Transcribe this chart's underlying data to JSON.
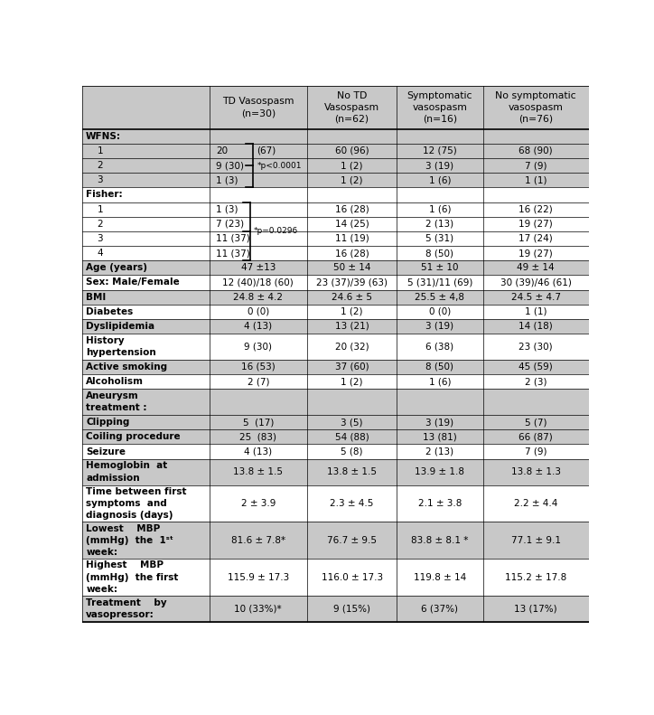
{
  "col_headers": [
    "TD Vasospasm\n(n=30)",
    "No TD\nVasospasm\n(n=62)",
    "Symptomatic\nvasospasm\n(n=16)",
    "No symptomatic\nvasospasm\n(n=76)"
  ],
  "gray_bg": "#C8C8C8",
  "white_bg": "#FFFFFF",
  "rows": [
    {
      "label": "WFNS:",
      "indent": 0,
      "bold": true,
      "type": "section",
      "cells": [
        "",
        "",
        "",
        ""
      ],
      "bg": "gray"
    },
    {
      "label": "    1",
      "indent": 0,
      "bold": false,
      "type": "normal",
      "cells": [
        "20",
        "60 (96)",
        "12 (75)",
        "68 (90)"
      ],
      "bg": "gray"
    },
    {
      "label": "    2",
      "indent": 0,
      "bold": false,
      "type": "normal",
      "cells": [
        "9 (30)",
        "1 (2)",
        "3 (19)",
        "7 (9)"
      ],
      "bg": "gray"
    },
    {
      "label": "    3",
      "indent": 0,
      "bold": false,
      "type": "normal",
      "cells": [
        "1 (3)",
        "1 (2)",
        "1 (6)",
        "1 (1)"
      ],
      "bg": "gray"
    },
    {
      "label": "Fisher:",
      "indent": 0,
      "bold": true,
      "type": "section",
      "cells": [
        "",
        "",
        "",
        ""
      ],
      "bg": "white"
    },
    {
      "label": "    1",
      "indent": 0,
      "bold": false,
      "type": "normal",
      "cells": [
        "1 (3)",
        "16 (28)",
        "1 (6)",
        "16 (22)"
      ],
      "bg": "white"
    },
    {
      "label": "    2",
      "indent": 0,
      "bold": false,
      "type": "normal",
      "cells": [
        "7 (23)",
        "14 (25)",
        "2 (13)",
        "19 (27)"
      ],
      "bg": "white"
    },
    {
      "label": "    3",
      "indent": 0,
      "bold": false,
      "type": "normal",
      "cells": [
        "11 (37)",
        "11 (19)",
        "5 (31)",
        "17 (24)"
      ],
      "bg": "white"
    },
    {
      "label": "    4",
      "indent": 0,
      "bold": false,
      "type": "normal",
      "cells": [
        "11 (37)",
        "16 (28)",
        "8 (50)",
        "19 (27)"
      ],
      "bg": "white"
    },
    {
      "label": "Age (years)",
      "indent": 0,
      "bold": true,
      "type": "normal",
      "cells": [
        "47 ±13",
        "50 ± 14",
        "51 ± 10",
        "49 ± 14"
      ],
      "bg": "gray"
    },
    {
      "label": "Sex: Male/Female",
      "indent": 0,
      "bold": true,
      "type": "normal",
      "cells": [
        "12 (40)/18 (60)",
        "23 (37)/39 (63)",
        "5 (31)/11 (69)",
        "30 (39)/46 (61)"
      ],
      "bg": "white"
    },
    {
      "label": "BMI",
      "indent": 0,
      "bold": true,
      "type": "normal",
      "cells": [
        "24.8 ± 4.2",
        "24.6 ± 5",
        "25.5 ± 4,8",
        "24.5 ± 4.7"
      ],
      "bg": "gray"
    },
    {
      "label": "Diabetes",
      "indent": 0,
      "bold": true,
      "type": "normal",
      "cells": [
        "0 (0)",
        "1 (2)",
        "0 (0)",
        "1 (1)"
      ],
      "bg": "white"
    },
    {
      "label": "Dyslipidemia",
      "indent": 0,
      "bold": true,
      "type": "normal",
      "cells": [
        "4 (13)",
        "13 (21)",
        "3 (19)",
        "14 (18)"
      ],
      "bg": "gray"
    },
    {
      "label": "History\nhypertension",
      "indent": 0,
      "bold": true,
      "type": "tall2",
      "cells": [
        "9 (30)",
        "20 (32)",
        "6 (38)",
        "23 (30)"
      ],
      "bg": "white"
    },
    {
      "label": "Active smoking",
      "indent": 0,
      "bold": true,
      "type": "normal",
      "cells": [
        "16 (53)",
        "37 (60)",
        "8 (50)",
        "45 (59)"
      ],
      "bg": "gray"
    },
    {
      "label": "Alcoholism",
      "indent": 0,
      "bold": true,
      "type": "normal",
      "cells": [
        "2 (7)",
        "1 (2)",
        "1 (6)",
        "2 (3)"
      ],
      "bg": "white"
    },
    {
      "label": "Aneurysm\ntreatment :",
      "indent": 0,
      "bold": true,
      "type": "tall2",
      "cells": [
        "",
        "",
        "",
        ""
      ],
      "bg": "gray"
    },
    {
      "label": "Clipping",
      "indent": 0,
      "bold": true,
      "type": "normal",
      "cells": [
        "5  (17)",
        "3 (5)",
        "3 (19)",
        "5 (7)"
      ],
      "bg": "gray"
    },
    {
      "label": "Coiling procedure",
      "indent": 0,
      "bold": true,
      "type": "normal",
      "cells": [
        "25  (83)",
        "54 (88)",
        "13 (81)",
        "66 (87)"
      ],
      "bg": "gray"
    },
    {
      "label": "Seizure",
      "indent": 0,
      "bold": true,
      "type": "normal",
      "cells": [
        "4 (13)",
        "5 (8)",
        "2 (13)",
        "7 (9)"
      ],
      "bg": "white"
    },
    {
      "label": "Hemoglobin  at\nadmission",
      "indent": 0,
      "bold": true,
      "type": "tall2",
      "cells": [
        "13.8 ± 1.5",
        "13.8 ± 1.5",
        "13.9 ± 1.8",
        "13.8 ± 1.3"
      ],
      "bg": "gray"
    },
    {
      "label": "Time between first\nsymptoms  and\ndiagnosis (days)",
      "indent": 0,
      "bold": true,
      "type": "tall3",
      "cells": [
        "2 ± 3.9",
        "2.3 ± 4.5",
        "2.1 ± 3.8",
        "2.2 ± 4.4"
      ],
      "bg": "white"
    },
    {
      "label": "Lowest    MBP\n(mmHg)  the  1ˢᵗ\nweek:",
      "indent": 0,
      "bold": true,
      "type": "tall3",
      "cells": [
        "81.6 ± 7.8*",
        "76.7 ± 9.5",
        "83.8 ± 8.1 *",
        "77.1 ± 9.1"
      ],
      "bg": "gray"
    },
    {
      "label": "Highest    MBP\n(mmHg)  the first\nweek:",
      "indent": 0,
      "bold": true,
      "type": "tall3",
      "cells": [
        "115.9 ± 17.3",
        "116.0 ± 17.3",
        "119.8 ± 14",
        "115.2 ± 17.8"
      ],
      "bg": "white"
    },
    {
      "label": "Treatment    by\nvasopressor:",
      "indent": 0,
      "bold": true,
      "type": "tall2",
      "cells": [
        "10 (33%)*",
        "9 (15%)",
        "6 (37%)",
        "13 (17%)"
      ],
      "bg": "gray"
    }
  ],
  "wfns_brace_rows": [
    1,
    2,
    3
  ],
  "fisher_brace_rows": [
    5,
    6,
    7,
    8
  ]
}
